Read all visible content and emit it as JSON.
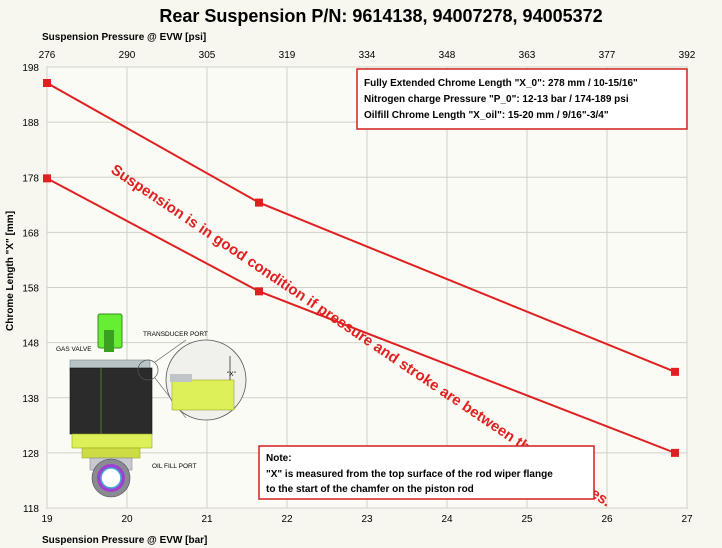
{
  "chart_data": {
    "type": "line",
    "title": "Rear Suspension P/N: 9614138, 94007278, 94005372",
    "xlabel": "Suspension Pressure @ EVW [bar]",
    "x2label": "Suspension Pressure @ EVW [psi]",
    "ylabel": "Chrome Length \"X\" [mm]",
    "xlim": [
      19,
      27
    ],
    "ylim": [
      118,
      198
    ],
    "x_ticks": [
      "19",
      "20",
      "21",
      "22",
      "23",
      "24",
      "25",
      "26",
      "27"
    ],
    "x2_ticks": [
      "276",
      "290",
      "305",
      "319",
      "334",
      "348",
      "363",
      "377",
      "392"
    ],
    "y_ticks": [
      "118",
      "128",
      "138",
      "148",
      "158",
      "168",
      "178",
      "188",
      "198"
    ],
    "series": [
      {
        "x": [
          19,
          21.65,
          26.85
        ],
        "values": [
          195.1,
          173.4,
          142.7
        ]
      },
      {
        "x": [
          19,
          21.65,
          26.85
        ],
        "values": [
          177.8,
          157.3,
          128.0
        ]
      }
    ],
    "colors": {
      "line": "#e02020",
      "marker": "#e02020",
      "box_border": "#d22020"
    },
    "annotation": "Suspension is in good condition if pressure and stroke are between these two lines.",
    "info_lines": [
      "Fully Extended Chrome Length \"X_0\":    278 mm / 10-15/16\"",
      "Nitrogen charge Pressure \"P_0\": 12-13 bar / 174-189 psi",
      "Oilfill Chrome Length \"X_oil\":    15-20 mm / 9/16\"-3/4\""
    ],
    "note_title": "Note:",
    "note_lines": [
      "\"X\" is measured from the top surface of the rod wiper flange",
      "to the start of the chamfer on the piston rod"
    ],
    "diagram_labels": {
      "gas_valve": "GAS VALVE",
      "transducer_port": "TRANSDUCER PORT",
      "oil_fill_port": "OIL FILL PORT",
      "x_marker": "\"X\""
    },
    "grid": true
  }
}
